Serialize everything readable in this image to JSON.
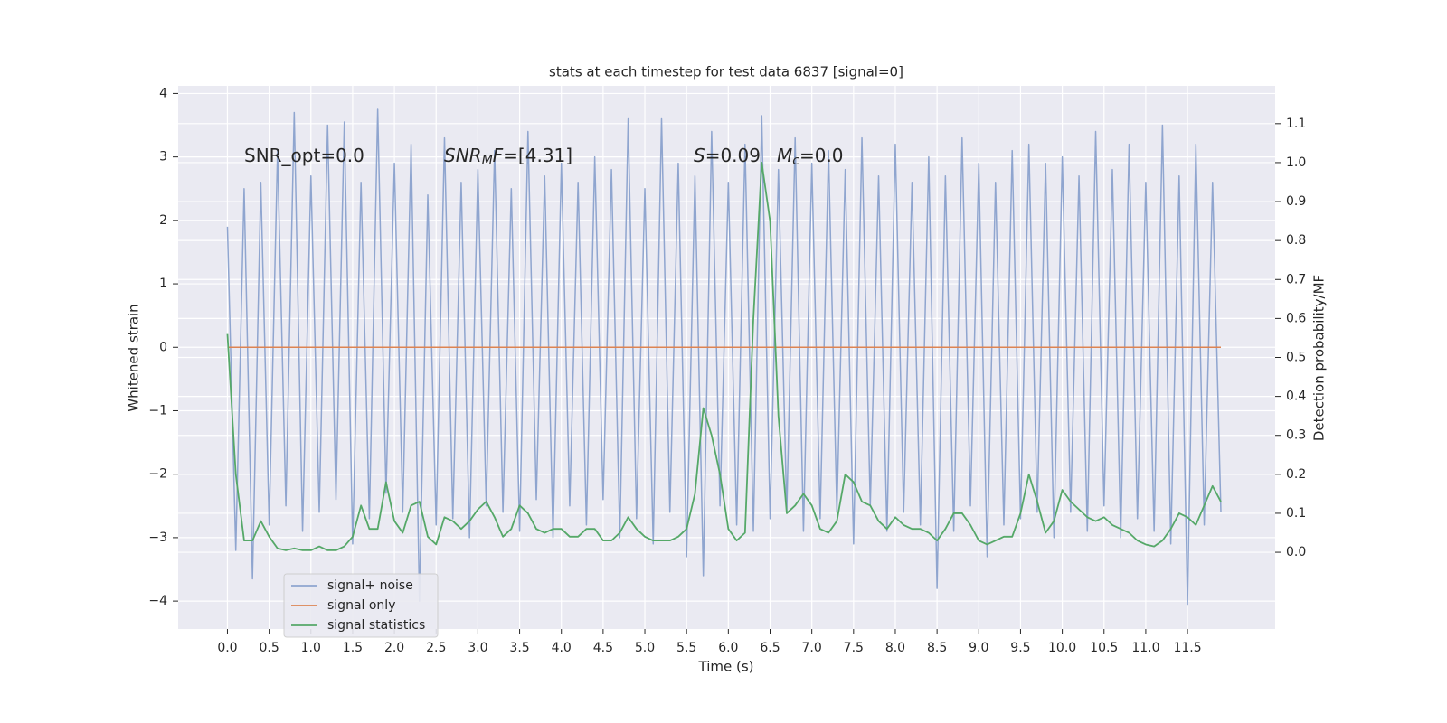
{
  "chart_data": {
    "type": "line",
    "title": "stats at each timestep for test data 6837 [signal=0]",
    "xlabel": "Time (s)",
    "ylabel": "Whitened strain",
    "y2label": "Detection probability/MF",
    "xlim": [
      -0.59,
      12.55
    ],
    "ylim": [
      -4.44,
      4.12
    ],
    "y2lim": [
      -0.197,
      1.197
    ],
    "xticks": [
      {
        "value": 0,
        "label": "0.0"
      },
      {
        "value": 0.5,
        "label": "0.5"
      },
      {
        "value": 1,
        "label": "1.0"
      },
      {
        "value": 1.5,
        "label": "1.5"
      },
      {
        "value": 2,
        "label": "2.0"
      },
      {
        "value": 2.5,
        "label": "2.5"
      },
      {
        "value": 3,
        "label": "3.0"
      },
      {
        "value": 3.5,
        "label": "3.5"
      },
      {
        "value": 4,
        "label": "4.0"
      },
      {
        "value": 4.5,
        "label": "4.5"
      },
      {
        "value": 5,
        "label": "5.0"
      },
      {
        "value": 5.5,
        "label": "5.5"
      },
      {
        "value": 6,
        "label": "6.0"
      },
      {
        "value": 6.5,
        "label": "6.5"
      },
      {
        "value": 7,
        "label": "7.0"
      },
      {
        "value": 7.5,
        "label": "7.5"
      },
      {
        "value": 8,
        "label": "8.0"
      },
      {
        "value": 8.5,
        "label": "8.5"
      },
      {
        "value": 9,
        "label": "9.0"
      },
      {
        "value": 9.5,
        "label": "9.5"
      },
      {
        "value": 10,
        "label": "10.0"
      },
      {
        "value": 10.5,
        "label": "10.5"
      },
      {
        "value": 11,
        "label": "11.0"
      },
      {
        "value": 11.5,
        "label": "11.5"
      }
    ],
    "yticks": [
      {
        "value": -4,
        "label": "−4"
      },
      {
        "value": -3,
        "label": "−3"
      },
      {
        "value": -2,
        "label": "−2"
      },
      {
        "value": -1,
        "label": "−1"
      },
      0,
      1,
      2,
      3,
      4
    ],
    "y2ticks": [
      {
        "value": 0,
        "label": "0.0"
      },
      {
        "value": 0.1,
        "label": "0.1"
      },
      {
        "value": 0.2,
        "label": "0.2"
      },
      {
        "value": 0.3,
        "label": "0.3"
      },
      {
        "value": 0.4,
        "label": "0.4"
      },
      {
        "value": 0.5,
        "label": "0.5"
      },
      {
        "value": 0.6,
        "label": "0.6"
      },
      {
        "value": 0.7,
        "label": "0.7"
      },
      {
        "value": 0.8,
        "label": "0.8"
      },
      {
        "value": 0.9,
        "label": "0.9"
      },
      {
        "value": 1,
        "label": "1.0"
      },
      {
        "value": 1.1,
        "label": "1.1"
      }
    ],
    "grid": true,
    "legend": "lower left",
    "x": [
      0,
      0.1,
      0.2,
      0.3,
      0.4,
      0.5,
      0.6,
      0.7,
      0.8,
      0.9,
      1,
      1.1,
      1.2,
      1.3,
      1.4,
      1.5,
      1.6,
      1.7,
      1.8,
      1.9,
      2,
      2.1,
      2.2,
      2.3,
      2.4,
      2.5,
      2.6,
      2.7,
      2.8,
      2.9,
      3,
      3.1,
      3.2,
      3.3,
      3.4,
      3.5,
      3.6,
      3.7,
      3.8,
      3.9,
      4,
      4.1,
      4.2,
      4.3,
      4.4,
      4.5,
      4.6,
      4.7,
      4.8,
      4.9,
      5,
      5.1,
      5.2,
      5.3,
      5.4,
      5.5,
      5.6,
      5.7,
      5.8,
      5.9,
      6,
      6.1,
      6.2,
      6.3,
      6.4,
      6.5,
      6.6,
      6.7,
      6.8,
      6.9,
      7,
      7.1,
      7.2,
      7.3,
      7.4,
      7.5,
      7.6,
      7.7,
      7.8,
      7.9,
      8,
      8.1,
      8.2,
      8.3,
      8.4,
      8.5,
      8.6,
      8.7,
      8.8,
      8.9,
      9,
      9.1,
      9.2,
      9.3,
      9.4,
      9.5,
      9.6,
      9.7,
      9.8,
      9.9,
      10,
      10.1,
      10.2,
      10.3,
      10.4,
      10.5,
      10.6,
      10.7,
      10.8,
      10.9,
      11,
      11.1,
      11.2,
      11.3,
      11.4,
      11.5,
      11.6,
      11.7,
      11.8,
      11.9
    ],
    "series": [
      {
        "name": "signal+ noise",
        "color": "#8fa5cf",
        "axis": "y",
        "values": [
          1.9,
          -3.2,
          2.5,
          -3.65,
          2.6,
          -2.8,
          3.1,
          -2.5,
          3.7,
          -2.9,
          2.7,
          -2.6,
          3.5,
          -2.4,
          3.55,
          -3.1,
          2.6,
          -2.7,
          3.75,
          -2.3,
          2.9,
          -2.6,
          3.2,
          -4.0,
          2.4,
          -2.8,
          3.3,
          -2.7,
          2.6,
          -3.0,
          2.8,
          -2.5,
          3.1,
          -2.6,
          2.5,
          -2.9,
          3.4,
          -2.4,
          2.7,
          -3.0,
          2.9,
          -2.5,
          2.6,
          -2.8,
          3.0,
          -2.4,
          2.8,
          -3.0,
          3.6,
          -2.7,
          2.5,
          -3.1,
          3.6,
          -2.6,
          2.9,
          -3.3,
          2.7,
          -3.6,
          3.4,
          -2.5,
          2.6,
          -2.8,
          3.2,
          -2.9,
          3.65,
          -2.7,
          2.8,
          -2.6,
          3.3,
          -2.9,
          2.9,
          -2.7,
          3.1,
          -2.6,
          2.8,
          -3.1,
          3.3,
          -2.5,
          2.7,
          -2.9,
          3.2,
          -2.6,
          2.6,
          -2.8,
          3.0,
          -3.8,
          2.7,
          -2.9,
          3.3,
          -2.5,
          2.9,
          -3.3,
          2.6,
          -2.8,
          3.1,
          -2.7,
          3.2,
          -2.6,
          2.9,
          -3.0,
          3.0,
          -2.6,
          2.7,
          -2.9,
          3.4,
          -2.5,
          2.8,
          -3.0,
          3.2,
          -2.7,
          2.6,
          -2.9,
          3.5,
          -3.1,
          2.7,
          -4.05,
          3.2,
          -2.8,
          2.6,
          -2.6
        ]
      },
      {
        "name": "signal only",
        "color": "#dd8452",
        "axis": "y",
        "values": [
          0,
          0,
          0,
          0,
          0,
          0,
          0,
          0,
          0,
          0,
          0,
          0,
          0,
          0,
          0,
          0,
          0,
          0,
          0,
          0,
          0,
          0,
          0,
          0,
          0,
          0,
          0,
          0,
          0,
          0,
          0,
          0,
          0,
          0,
          0,
          0,
          0,
          0,
          0,
          0,
          0,
          0,
          0,
          0,
          0,
          0,
          0,
          0,
          0,
          0,
          0,
          0,
          0,
          0,
          0,
          0,
          0,
          0,
          0,
          0,
          0,
          0,
          0,
          0,
          0,
          0,
          0,
          0,
          0,
          0,
          0,
          0,
          0,
          0,
          0,
          0,
          0,
          0,
          0,
          0,
          0,
          0,
          0,
          0,
          0,
          0,
          0,
          0,
          0,
          0,
          0,
          0,
          0,
          0,
          0,
          0,
          0,
          0,
          0,
          0,
          0,
          0,
          0,
          0,
          0,
          0,
          0,
          0,
          0,
          0,
          0,
          0,
          0,
          0,
          0,
          0,
          0,
          0,
          0,
          0
        ]
      },
      {
        "name": "signal statistics",
        "color": "#55a868",
        "axis": "y2",
        "values": [
          0.56,
          0.2,
          0.03,
          0.03,
          0.08,
          0.04,
          0.01,
          0.005,
          0.01,
          0.005,
          0.005,
          0.015,
          0.005,
          0.005,
          0.015,
          0.04,
          0.12,
          0.06,
          0.06,
          0.18,
          0.08,
          0.05,
          0.12,
          0.13,
          0.04,
          0.02,
          0.09,
          0.08,
          0.06,
          0.08,
          0.11,
          0.13,
          0.09,
          0.04,
          0.06,
          0.12,
          0.1,
          0.06,
          0.05,
          0.06,
          0.06,
          0.04,
          0.04,
          0.06,
          0.06,
          0.03,
          0.03,
          0.05,
          0.09,
          0.06,
          0.04,
          0.03,
          0.03,
          0.03,
          0.04,
          0.06,
          0.15,
          0.37,
          0.3,
          0.2,
          0.06,
          0.03,
          0.05,
          0.6,
          1.0,
          0.85,
          0.35,
          0.1,
          0.12,
          0.15,
          0.12,
          0.06,
          0.05,
          0.08,
          0.2,
          0.18,
          0.13,
          0.12,
          0.08,
          0.06,
          0.09,
          0.07,
          0.06,
          0.06,
          0.05,
          0.03,
          0.06,
          0.1,
          0.1,
          0.07,
          0.03,
          0.02,
          0.03,
          0.04,
          0.04,
          0.1,
          0.2,
          0.13,
          0.05,
          0.08,
          0.16,
          0.13,
          0.11,
          0.09,
          0.08,
          0.09,
          0.07,
          0.06,
          0.05,
          0.03,
          0.02,
          0.015,
          0.03,
          0.06,
          0.1,
          0.09,
          0.07,
          0.12,
          0.17,
          0.13
        ]
      }
    ],
    "annotations": [
      {
        "segments": [
          {
            "text": "SNR_opt=0.0",
            "style": "normal"
          }
        ]
      },
      {
        "segments": [
          {
            "text": "SNR",
            "style": "italic"
          },
          {
            "text": "M",
            "style": "sub"
          },
          {
            "text": "F",
            "style": "italic"
          },
          {
            "text": "=[4.31]",
            "style": "normal"
          }
        ]
      },
      {
        "segments": [
          {
            "text": "S",
            "style": "italic"
          },
          {
            "text": "=0.09",
            "style": "normal"
          }
        ]
      },
      {
        "segments": [
          {
            "text": "M",
            "style": "italic"
          },
          {
            "text": "c",
            "style": "sub"
          },
          {
            "text": "=0.0",
            "style": "normal"
          }
        ]
      }
    ]
  }
}
